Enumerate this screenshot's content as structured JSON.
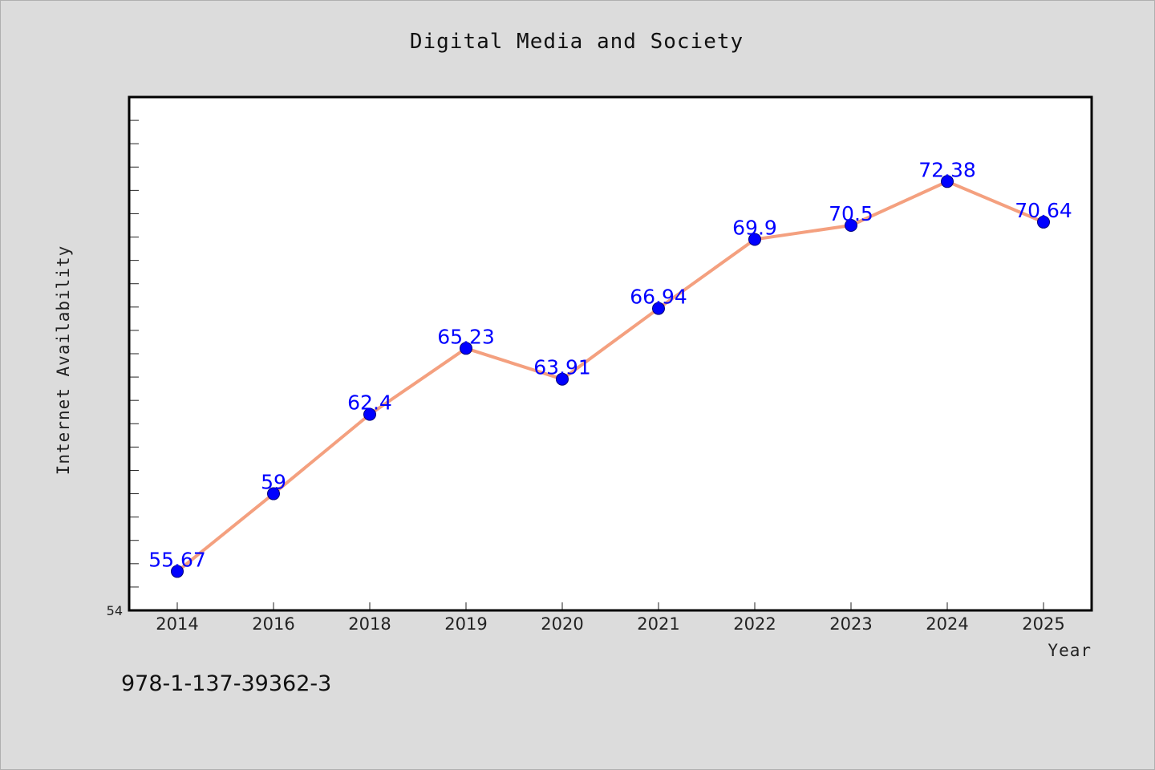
{
  "title": "Digital Media and Society",
  "footer_text": "978-1-137-39362-3",
  "chart_data": {
    "type": "line",
    "title": "Digital Media and Society",
    "xlabel": "Year",
    "ylabel": "Internet Availability",
    "categories": [
      "2014",
      "2016",
      "2018",
      "2019",
      "2020",
      "2021",
      "2022",
      "2023",
      "2024",
      "2025"
    ],
    "series": [
      {
        "values": [
          55.67,
          59,
          62.4,
          65.23,
          63.91,
          66.94,
          69.9,
          70.5,
          72.38,
          70.64
        ]
      }
    ],
    "value_labels": [
      "55.67",
      "59",
      "62.4",
      "65.23",
      "63.91",
      "66.94",
      "69.9",
      "70.5",
      "72.38",
      "70.64"
    ],
    "ylim": [
      54,
      76
    ],
    "y_tick_labels": [
      "54"
    ],
    "y_minor_tick_step": 1,
    "grid": false,
    "legend": "none",
    "colors": {
      "line": "#f4a07f",
      "marker_fill": "#0000ff",
      "marker_stroke": "#00007a",
      "label": "#0000ff",
      "plot_background": "#ffffff",
      "page_background": "#dcdcdc"
    }
  }
}
